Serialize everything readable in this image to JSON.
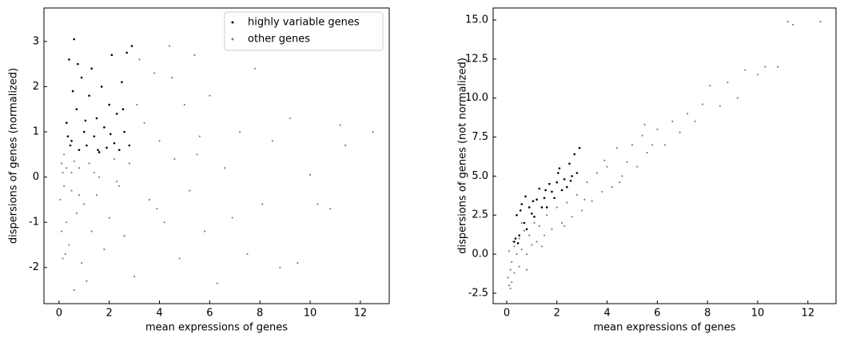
{
  "chart_data": [
    {
      "type": "scatter",
      "xlabel": "mean expressions of genes",
      "ylabel": "dispersions of genes (normalized)",
      "xlim": [
        -0.6,
        13.15
      ],
      "ylim": [
        -2.8,
        3.74
      ],
      "xticks": [
        0,
        2,
        4,
        6,
        8,
        10,
        12
      ],
      "yticks": [
        -2,
        -1,
        0,
        1,
        2,
        3
      ],
      "legend": "upper right",
      "series": [
        {
          "name": "highly variable genes",
          "color": "#000000",
          "x": [
            0.3,
            0.4,
            0.5,
            0.6,
            0.7,
            0.8,
            0.9,
            1.0,
            1.1,
            1.2,
            1.3,
            1.4,
            1.5,
            1.6,
            1.7,
            1.8,
            1.9,
            2.0,
            2.1,
            2.2,
            2.3,
            2.4,
            2.5,
            2.6,
            2.7,
            2.8,
            2.9,
            0.35,
            0.55,
            0.75,
            1.05,
            1.55,
            2.05,
            2.55,
            0.45
          ],
          "values": [
            1.2,
            2.6,
            0.8,
            3.05,
            1.5,
            0.6,
            2.2,
            1.0,
            0.7,
            1.8,
            2.4,
            0.9,
            1.3,
            0.55,
            2.0,
            1.1,
            0.65,
            1.6,
            2.7,
            0.75,
            1.4,
            0.6,
            2.1,
            1.0,
            2.75,
            0.7,
            2.9,
            0.9,
            1.9,
            2.5,
            1.25,
            0.6,
            0.95,
            1.5,
            0.7
          ]
        },
        {
          "name": "other genes",
          "color": "#808080",
          "x": [
            0.05,
            0.1,
            0.1,
            0.15,
            0.2,
            0.2,
            0.3,
            0.3,
            0.4,
            0.5,
            0.5,
            0.6,
            0.7,
            0.8,
            0.9,
            1.0,
            1.1,
            1.2,
            1.3,
            1.5,
            1.6,
            1.8,
            2.0,
            2.2,
            2.4,
            2.6,
            2.8,
            3.0,
            3.2,
            3.4,
            3.6,
            3.8,
            4.0,
            4.2,
            4.4,
            4.6,
            4.8,
            5.0,
            5.2,
            5.4,
            5.6,
            5.8,
            6.0,
            6.3,
            6.6,
            6.9,
            7.2,
            7.5,
            7.8,
            8.1,
            8.5,
            8.8,
            9.2,
            9.5,
            10.0,
            10.3,
            10.8,
            11.2,
            11.4,
            12.5,
            0.6,
            1.4,
            2.3,
            3.1,
            3.9,
            4.5,
            5.5,
            0.25,
            0.15,
            0.8
          ],
          "values": [
            -0.5,
            -1.2,
            0.3,
            -1.8,
            -0.2,
            0.5,
            -1.0,
            0.2,
            -1.5,
            -0.3,
            0.1,
            -2.5,
            -0.8,
            0.2,
            -1.9,
            -0.6,
            -2.3,
            0.3,
            -1.2,
            -0.4,
            0.0,
            -1.6,
            -0.9,
            0.4,
            -0.2,
            -1.3,
            0.3,
            -2.2,
            2.6,
            1.2,
            -0.5,
            2.3,
            0.8,
            -1.0,
            2.9,
            0.4,
            -1.8,
            1.6,
            -0.3,
            2.7,
            0.9,
            -1.2,
            1.8,
            -2.35,
            0.2,
            -0.9,
            1.0,
            -1.7,
            2.4,
            -0.6,
            0.8,
            -2.0,
            1.3,
            -1.9,
            0.05,
            -0.6,
            -0.7,
            1.15,
            0.7,
            1.0,
            0.35,
            0.1,
            -0.1,
            1.6,
            -0.7,
            2.2,
            0.5,
            -1.7,
            0.1,
            -0.4
          ]
        }
      ]
    },
    {
      "type": "scatter",
      "xlabel": "mean expressions of genes",
      "ylabel": "dispersions of genes (not normalized)",
      "xlim": [
        -0.54,
        13.12
      ],
      "ylim": [
        -3.17,
        15.77
      ],
      "xticks": [
        0,
        2,
        4,
        6,
        8,
        10,
        12
      ],
      "yticks": [
        -2.5,
        {
          "value": 0,
          "label": "0.0"
        },
        2.5,
        {
          "value": 5,
          "label": "5.0"
        },
        7.5,
        {
          "value": 10,
          "label": "10.0"
        },
        12.5,
        {
          "value": 15,
          "label": "15.0"
        }
      ],
      "series": [
        {
          "color": "#000000",
          "x": [
            0.3,
            0.4,
            0.5,
            0.6,
            0.7,
            0.8,
            0.9,
            1.0,
            1.1,
            1.2,
            1.3,
            1.4,
            1.5,
            1.6,
            1.7,
            1.8,
            1.9,
            2.0,
            2.1,
            2.2,
            2.3,
            2.4,
            2.5,
            2.6,
            2.7,
            2.8,
            2.9,
            0.35,
            0.55,
            0.75,
            1.05,
            1.55,
            2.05,
            2.55,
            0.45
          ],
          "values": [
            0.8,
            2.5,
            1.2,
            3.2,
            2.0,
            1.6,
            3.0,
            2.6,
            2.4,
            3.5,
            4.2,
            3.0,
            3.6,
            3.0,
            4.5,
            4.0,
            3.6,
            4.6,
            5.5,
            4.1,
            4.8,
            4.3,
            5.8,
            5.0,
            6.4,
            5.2,
            6.8,
            1.0,
            2.8,
            3.7,
            3.4,
            4.1,
            5.2,
            4.7,
            0.7
          ]
        },
        {
          "color": "#808080",
          "x": [
            0.05,
            0.1,
            0.1,
            0.15,
            0.2,
            0.2,
            0.3,
            0.3,
            0.4,
            0.5,
            0.5,
            0.6,
            0.7,
            0.8,
            0.9,
            1.0,
            1.1,
            1.2,
            1.3,
            1.5,
            1.6,
            1.8,
            2.0,
            2.2,
            2.4,
            2.6,
            2.8,
            3.0,
            3.2,
            3.4,
            3.6,
            3.8,
            4.0,
            4.2,
            4.4,
            4.6,
            4.8,
            5.0,
            5.2,
            5.4,
            5.6,
            5.8,
            6.0,
            6.3,
            6.6,
            6.9,
            7.2,
            7.5,
            7.8,
            8.1,
            8.5,
            8.8,
            9.2,
            9.5,
            10.0,
            10.3,
            10.8,
            11.2,
            11.4,
            12.5,
            0.6,
            1.4,
            2.3,
            3.1,
            3.9,
            4.5,
            5.5,
            0.25,
            0.15,
            0.8
          ],
          "values": [
            -1.5,
            -2.0,
            0.2,
            -1.0,
            -0.5,
            -1.8,
            0.5,
            -1.2,
            0.0,
            -0.8,
            1.0,
            0.3,
            1.5,
            0.0,
            1.2,
            0.6,
            2.0,
            0.8,
            1.8,
            1.2,
            2.5,
            1.6,
            3.0,
            2.0,
            3.3,
            2.4,
            3.8,
            2.8,
            4.6,
            3.4,
            5.2,
            4.0,
            5.6,
            4.3,
            6.8,
            5.0,
            5.9,
            7.0,
            5.6,
            7.6,
            6.5,
            7.0,
            8.0,
            7.0,
            8.5,
            7.8,
            9.0,
            8.5,
            9.6,
            10.8,
            9.5,
            11.0,
            10.0,
            11.8,
            11.5,
            12.0,
            12.0,
            14.9,
            14.7,
            14.9,
            2.0,
            0.5,
            1.8,
            3.5,
            6.0,
            4.6,
            8.3,
            0.8,
            -2.2,
            -1.0
          ]
        }
      ]
    }
  ]
}
